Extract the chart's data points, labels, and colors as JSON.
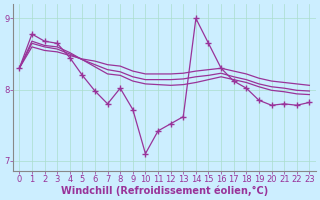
{
  "xlabel": "Windchill (Refroidissement éolien,°C)",
  "bg_color": "#cceeff",
  "line_color": "#993399",
  "marker": "+",
  "markersize": 4,
  "markeredgewidth": 1.0,
  "linewidth": 0.9,
  "xlim": [
    -0.5,
    23.5
  ],
  "ylim": [
    6.85,
    9.2
  ],
  "yticks": [
    7,
    8,
    9
  ],
  "xticks": [
    0,
    1,
    2,
    3,
    4,
    5,
    6,
    7,
    8,
    9,
    10,
    11,
    12,
    13,
    14,
    15,
    16,
    17,
    18,
    19,
    20,
    21,
    22,
    23
  ],
  "main_series": [
    8.3,
    8.78,
    8.68,
    8.65,
    8.45,
    8.2,
    7.98,
    7.8,
    8.02,
    7.72,
    7.1,
    7.42,
    7.52,
    7.62,
    9.0,
    8.65,
    8.3,
    8.12,
    8.02,
    7.85,
    7.78,
    7.8,
    7.78,
    7.82
  ],
  "smooth_series": [
    [
      8.3,
      8.68,
      8.62,
      8.6,
      8.52,
      8.42,
      8.32,
      8.22,
      8.2,
      8.12,
      8.08,
      8.07,
      8.06,
      8.07,
      8.1,
      8.14,
      8.18,
      8.14,
      8.1,
      8.04,
      7.99,
      7.97,
      7.94,
      7.93
    ],
    [
      8.3,
      8.65,
      8.6,
      8.57,
      8.5,
      8.42,
      8.35,
      8.28,
      8.25,
      8.18,
      8.14,
      8.14,
      8.14,
      8.15,
      8.18,
      8.2,
      8.23,
      8.18,
      8.14,
      8.08,
      8.04,
      8.02,
      7.99,
      7.98
    ],
    [
      8.3,
      8.6,
      8.55,
      8.53,
      8.48,
      8.43,
      8.4,
      8.35,
      8.33,
      8.26,
      8.22,
      8.22,
      8.22,
      8.23,
      8.26,
      8.28,
      8.3,
      8.26,
      8.22,
      8.16,
      8.12,
      8.1,
      8.08,
      8.06
    ]
  ],
  "grid_color": "#aaddcc",
  "axis_color": "#888888",
  "tick_label_color": "#993399",
  "label_color": "#993399",
  "xlabel_fontsize": 7.0,
  "tick_fontsize": 6.0
}
